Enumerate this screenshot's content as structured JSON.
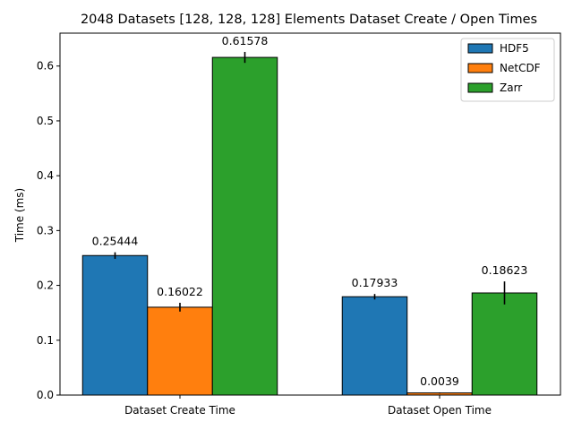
{
  "chart_data": {
    "type": "bar",
    "title": "2048 Datasets [128, 128, 128] Elements Dataset Create / Open Times",
    "xlabel": "",
    "ylabel": "Time (ms)",
    "ylim": [
      0,
      0.66
    ],
    "yticks": [
      "0.0",
      "0.1",
      "0.2",
      "0.3",
      "0.4",
      "0.5",
      "0.6"
    ],
    "categories": [
      "Dataset Create Time",
      "Dataset Open Time"
    ],
    "series": [
      {
        "name": "HDF5",
        "color": "#1f77b4",
        "values": [
          0.25444,
          0.17933
        ],
        "errors": [
          0.006,
          0.005
        ],
        "labels": [
          "0.25444",
          "0.17933"
        ]
      },
      {
        "name": "NetCDF",
        "color": "#ff7f0e",
        "values": [
          0.16022,
          0.0039
        ],
        "errors": [
          0.008,
          0.001
        ],
        "labels": [
          "0.16022",
          "0.0039"
        ]
      },
      {
        "name": "Zarr",
        "color": "#2ca02c",
        "values": [
          0.61578,
          0.18623
        ],
        "errors": [
          0.01,
          0.021
        ],
        "labels": [
          "0.61578",
          "0.18623"
        ]
      }
    ],
    "grid": false,
    "legend_position": "top-right"
  }
}
